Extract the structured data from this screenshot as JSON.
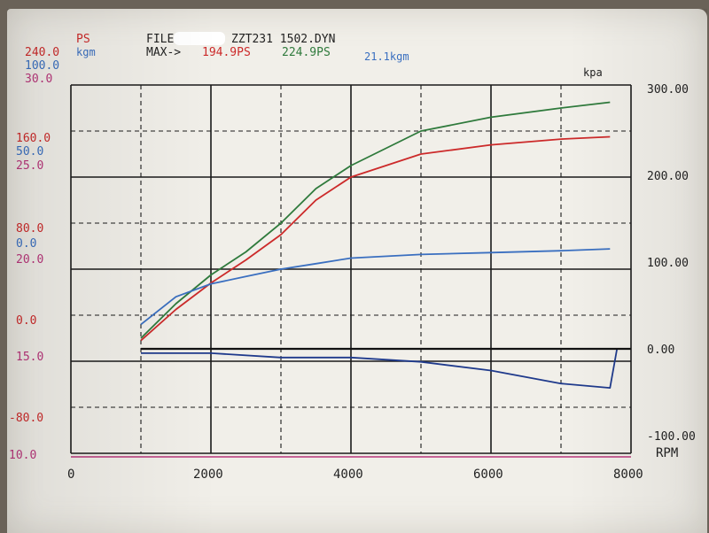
{
  "header": {
    "ps_label": "PS",
    "kgm_label": "kgm",
    "file_prefix": "FILE",
    "file_name": "ZZT231  1502.DYN",
    "max_label": "MAX->",
    "max_ps_red": "194.9PS",
    "max_ps_green": "224.9PS",
    "max_kgm": "21.1kgm",
    "kpa_label": "kpa"
  },
  "left_axis": {
    "top": {
      "red": "240.0",
      "blue": "100.0",
      "black": "30.0"
    },
    "upper": {
      "red": "160.0",
      "blue": "50.0",
      "black": "25.0"
    },
    "middle": {
      "red": "80.0",
      "blue": "0.0",
      "black": "20.0"
    },
    "lower_red": "0.0",
    "lower_black": "15.0",
    "bottom_red": "-80.0",
    "bottom_black": "10.0"
  },
  "colors": {
    "red": "#cc2a2a",
    "green": "#2f7a3c",
    "blue": "#3a6fc0",
    "darkblue": "#1f3a8c",
    "black": "#1a1a1a",
    "magenta": "#b8357a"
  },
  "chart_data": {
    "type": "line",
    "x_axis": {
      "label": "RPM",
      "range": [
        0,
        8000
      ],
      "ticks": [
        "0",
        "2000",
        "4000",
        "6000",
        "8000"
      ]
    },
    "y_axis_right": {
      "label": "kpa",
      "range": [
        -100,
        300
      ],
      "ticks": [
        "300.00",
        "200.00",
        "100.00",
        "0.00",
        "-100.00"
      ]
    },
    "grid": true,
    "series": [
      {
        "color": "green",
        "unit": "PS",
        "points": [
          [
            1000,
            20
          ],
          [
            1500,
            50
          ],
          [
            2000,
            75
          ],
          [
            2500,
            95
          ],
          [
            3000,
            120
          ],
          [
            3500,
            150
          ],
          [
            4000,
            170
          ],
          [
            5000,
            200
          ],
          [
            6000,
            212
          ],
          [
            7000,
            220
          ],
          [
            7700,
            225
          ]
        ]
      },
      {
        "color": "red",
        "unit": "PS",
        "points": [
          [
            1000,
            18
          ],
          [
            1500,
            45
          ],
          [
            2000,
            68
          ],
          [
            2500,
            88
          ],
          [
            3000,
            110
          ],
          [
            3500,
            140
          ],
          [
            4000,
            160
          ],
          [
            5000,
            180
          ],
          [
            6000,
            188
          ],
          [
            7000,
            193
          ],
          [
            7700,
            195
          ]
        ]
      },
      {
        "color": "blue",
        "unit": "kgm",
        "points": [
          [
            1000,
            17
          ],
          [
            1500,
            18.5
          ],
          [
            2000,
            19.2
          ],
          [
            2500,
            19.6
          ],
          [
            3000,
            20.0
          ],
          [
            3500,
            20.3
          ],
          [
            4000,
            20.6
          ],
          [
            5000,
            20.8
          ],
          [
            6000,
            20.9
          ],
          [
            7000,
            21.0
          ],
          [
            7700,
            21.1
          ]
        ]
      },
      {
        "color": "darkblue",
        "unit": "kpa",
        "points": [
          [
            1000,
            -5
          ],
          [
            2000,
            -5
          ],
          [
            3000,
            -10
          ],
          [
            4000,
            -10
          ],
          [
            5000,
            -15
          ],
          [
            6000,
            -25
          ],
          [
            7000,
            -40
          ],
          [
            7700,
            -45
          ],
          [
            7800,
            0
          ]
        ]
      }
    ]
  }
}
